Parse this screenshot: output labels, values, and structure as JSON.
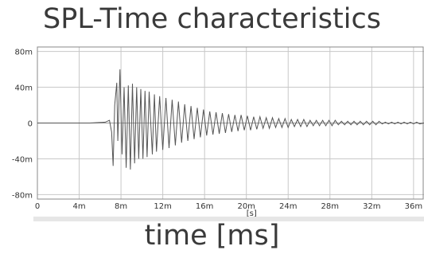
{
  "chart_data": {
    "type": "line",
    "title": "SPL-Time characteristics",
    "xlabel": "time [ms]",
    "x_unit_label": "[s]",
    "ylabel": "",
    "xlim": [
      0,
      0.037
    ],
    "ylim": [
      -0.085,
      0.085
    ],
    "grid": true,
    "x_ticks": [
      {
        "value": 0,
        "label": "0"
      },
      {
        "value": 0.004,
        "label": "4m"
      },
      {
        "value": 0.008,
        "label": "8m"
      },
      {
        "value": 0.012,
        "label": "12m"
      },
      {
        "value": 0.016,
        "label": "16m"
      },
      {
        "value": 0.02,
        "label": "20m"
      },
      {
        "value": 0.024,
        "label": "24m"
      },
      {
        "value": 0.028,
        "label": "28m"
      },
      {
        "value": 0.032,
        "label": "32m"
      },
      {
        "value": 0.036,
        "label": "36m"
      }
    ],
    "y_ticks": [
      {
        "value": 0.08,
        "label": "80m"
      },
      {
        "value": 0.04,
        "label": "40m"
      },
      {
        "value": 0,
        "label": "0"
      },
      {
        "value": -0.04,
        "label": "-40m"
      },
      {
        "value": -0.08,
        "label": "-80m"
      }
    ],
    "series": [
      {
        "color": "#555555",
        "x": [
          0,
          0.005,
          0.0065,
          0.0069,
          0.0071,
          0.00725,
          0.0074,
          0.0076,
          0.0077,
          0.0079,
          0.0081,
          0.0083,
          0.0085,
          0.0087,
          0.0089,
          0.0091,
          0.0093,
          0.0095,
          0.0097,
          0.0099,
          0.0101,
          0.0103,
          0.0105,
          0.0107,
          0.011,
          0.0112,
          0.0114,
          0.0117,
          0.012,
          0.0123,
          0.0126,
          0.0129,
          0.0132,
          0.0135,
          0.0138,
          0.0141,
          0.0144,
          0.0147,
          0.015,
          0.0153,
          0.0156,
          0.0159,
          0.0162,
          0.0165,
          0.0168,
          0.0171,
          0.0174,
          0.0177,
          0.018,
          0.0183,
          0.0186,
          0.0189,
          0.0192,
          0.0195,
          0.0198,
          0.0201,
          0.0204,
          0.0207,
          0.021,
          0.0213,
          0.0216,
          0.0219,
          0.0222,
          0.0225,
          0.0228,
          0.0231,
          0.0234,
          0.0237,
          0.024,
          0.0243,
          0.0246,
          0.0249,
          0.0252,
          0.0255,
          0.0258,
          0.0261,
          0.0264,
          0.0267,
          0.027,
          0.0273,
          0.0276,
          0.0279,
          0.0282,
          0.0285,
          0.0288,
          0.0291,
          0.0294,
          0.0297,
          0.03,
          0.0303,
          0.0306,
          0.0309,
          0.0312,
          0.0315,
          0.0318,
          0.0321,
          0.0324,
          0.0327,
          0.033,
          0.0333,
          0.0336,
          0.0339,
          0.0342,
          0.0345,
          0.0348,
          0.0351,
          0.0354,
          0.0357,
          0.036,
          0.0363,
          0.0366,
          0.037
        ],
        "y": [
          0,
          0,
          0.001,
          0.003,
          -0.01,
          -0.048,
          0.02,
          0.045,
          -0.02,
          0.06,
          -0.035,
          0.04,
          -0.05,
          0.042,
          -0.052,
          0.044,
          -0.045,
          0.04,
          -0.04,
          0.038,
          -0.04,
          0.036,
          -0.038,
          0.035,
          -0.035,
          0.032,
          -0.032,
          0.03,
          -0.03,
          0.028,
          -0.028,
          0.026,
          -0.025,
          0.024,
          -0.022,
          0.021,
          -0.02,
          0.019,
          -0.018,
          0.017,
          -0.016,
          0.015,
          -0.014,
          0.013,
          -0.013,
          0.012,
          -0.012,
          0.011,
          -0.011,
          0.01,
          -0.01,
          0.009,
          -0.009,
          0.009,
          -0.008,
          0.008,
          -0.008,
          0.007,
          -0.007,
          0.007,
          -0.006,
          0.006,
          -0.006,
          0.006,
          -0.005,
          0.005,
          -0.005,
          0.005,
          -0.005,
          0.004,
          -0.004,
          0.004,
          -0.004,
          0.004,
          -0.004,
          0.003,
          -0.003,
          0.003,
          -0.003,
          0.003,
          -0.003,
          0.003,
          -0.003,
          0.003,
          -0.002,
          0.002,
          -0.002,
          0.002,
          -0.002,
          0.002,
          -0.002,
          0.002,
          -0.002,
          0.002,
          -0.002,
          0.002,
          -0.002,
          0.002,
          -0.001,
          0.001,
          -0.001,
          0.001,
          -0.001,
          0.001,
          -0.001,
          0.001,
          -0.001,
          0.001,
          -0.001,
          0.001,
          -0.001,
          0
        ]
      }
    ]
  }
}
